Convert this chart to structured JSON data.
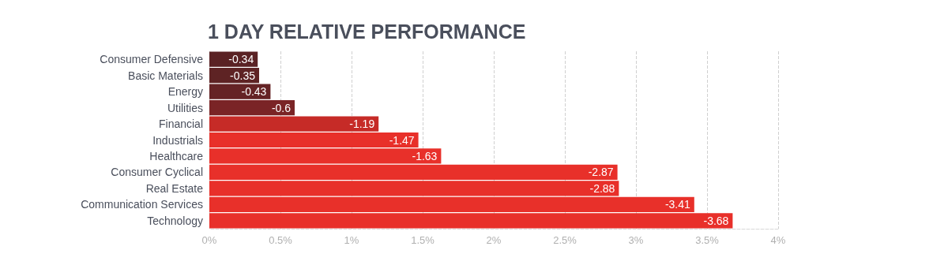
{
  "chart_data": {
    "type": "bar",
    "orientation": "horizontal",
    "title": "1 DAY RELATIVE PERFORMANCE",
    "categories": [
      "Consumer Defensive",
      "Basic Materials",
      "Energy",
      "Utilities",
      "Financial",
      "Industrials",
      "Healthcare",
      "Consumer Cyclical",
      "Real Estate",
      "Communication Services",
      "Technology"
    ],
    "values": [
      -0.34,
      -0.35,
      -0.43,
      -0.6,
      -1.19,
      -1.47,
      -1.63,
      -2.87,
      -2.88,
      -3.41,
      -3.68
    ],
    "data_labels": true,
    "colors": [
      "#5a2224",
      "#5e2324",
      "#652325",
      "#7a2426",
      "#c62b27",
      "#e8302a",
      "#e8302a",
      "#e8302a",
      "#e8302a",
      "#e8302a",
      "#e8302a"
    ],
    "xlim": [
      0,
      -4
    ],
    "xticks": [
      {
        "value": 0,
        "label": "0%"
      },
      {
        "value": -0.5,
        "label": "0.5%"
      },
      {
        "value": -1,
        "label": "1%"
      },
      {
        "value": -1.5,
        "label": "1.5%"
      },
      {
        "value": -2,
        "label": "2%"
      },
      {
        "value": -2.5,
        "label": "2.5%"
      },
      {
        "value": -3,
        "label": "3%"
      },
      {
        "value": -3.5,
        "label": "3.5%"
      },
      {
        "value": -4,
        "label": "4%"
      }
    ],
    "grid": "x"
  }
}
